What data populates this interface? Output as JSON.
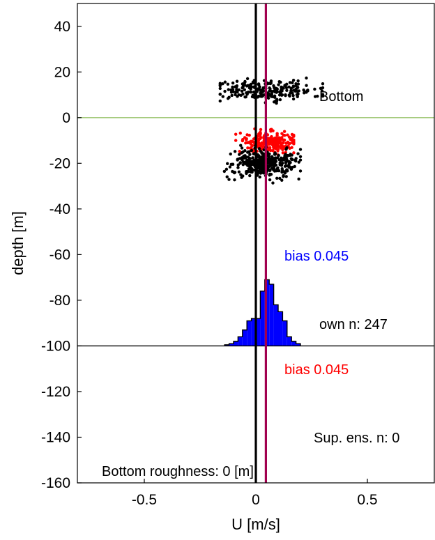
{
  "chart_data": {
    "type": "scatter",
    "xlabel": "U [m/s]",
    "ylabel": "depth [m]",
    "xlim": [
      -0.8,
      0.8
    ],
    "ylim": [
      -160,
      50
    ],
    "xticks": [
      -0.5,
      0,
      0.5
    ],
    "xtick_labels": [
      "-0.5",
      "0",
      "0.5"
    ],
    "yticks": [
      40,
      20,
      0,
      -20,
      -40,
      -60,
      -80,
      -100,
      -120,
      -140,
      -160
    ],
    "ytick_labels": [
      "40",
      "20",
      "0",
      "-20",
      "-40",
      "-60",
      "-80",
      "-100",
      "-120",
      "-140",
      "-160"
    ],
    "grid": false,
    "colors": {
      "black": "#000000",
      "red": "#ff0000",
      "blue": "#0000ff",
      "zero_line": "#a3c97a",
      "bias_line": "#a2004f"
    },
    "reference_lines": {
      "vertical_zero_x": 0,
      "vertical_bias_x": 0.045,
      "horizontal_zero_y": 0,
      "horizontal_base_y": -100
    },
    "scatter_clusters": [
      {
        "color": "black",
        "x_center": 0.04,
        "x_spread": 0.12,
        "x_min": -0.16,
        "x_max": 0.3,
        "y_center": 12,
        "y_spread": 2.2,
        "count": 240
      },
      {
        "color": "red",
        "x_center": 0.06,
        "x_spread": 0.06,
        "x_min": -0.09,
        "x_max": 0.17,
        "y_center": -11,
        "y_spread": 2.2,
        "count": 247
      },
      {
        "color": "black",
        "x_center": 0.03,
        "x_spread": 0.07,
        "x_min": -0.15,
        "x_max": 0.2,
        "y_center": -20,
        "y_spread": 3.0,
        "count": 400
      }
    ],
    "histogram": {
      "base": -100,
      "bin_edges": [
        -0.14,
        -0.12,
        -0.1,
        -0.08,
        -0.06,
        -0.04,
        -0.02,
        0,
        0.02,
        0.04,
        0.06,
        0.08,
        0.1,
        0.12,
        0.14,
        0.16,
        0.18,
        0.2
      ],
      "tops": [
        -99.5,
        -99,
        -98,
        -96,
        -93,
        -89,
        -88,
        -88,
        -76,
        -71,
        -73,
        -82,
        -85,
        -89,
        -96,
        -98,
        -99
      ]
    },
    "annotations": {
      "bottom": "Bottom",
      "bias_blue": "bias  0.045",
      "own_n": "own n: 247",
      "bias_red": "bias  0.045",
      "sup_ens": "Sup. ens. n: 0",
      "roughness": "Bottom roughness: 0 [m]"
    }
  }
}
